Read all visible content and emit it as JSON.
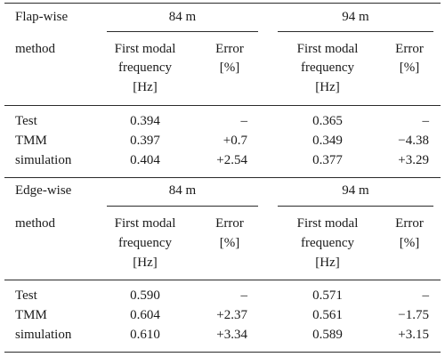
{
  "sections": [
    {
      "label": "Flap-wise",
      "groups": [
        "84 m",
        "94 m"
      ],
      "method_label": "method",
      "freq_header": [
        "First modal",
        "frequency",
        "[Hz]"
      ],
      "error_header": [
        "Error",
        "[%]"
      ],
      "rows": [
        {
          "method": "Test",
          "f84": "0.394",
          "e84": "–",
          "f94": "0.365",
          "e94": "–"
        },
        {
          "method": "TMM",
          "f84": "0.397",
          "e84": "+0.7",
          "f94": "0.349",
          "e94": "−4.38"
        },
        {
          "method": "simulation",
          "f84": "0.404",
          "e84": "+2.54",
          "f94": "0.377",
          "e94": "+3.29"
        }
      ]
    },
    {
      "label": "Edge-wise",
      "groups": [
        "84 m",
        "94 m"
      ],
      "method_label": "method",
      "freq_header": [
        "First modal",
        "frequency",
        "[Hz]"
      ],
      "error_header": [
        "Error",
        "[%]"
      ],
      "rows": [
        {
          "method": "Test",
          "f84": "0.590",
          "e84": "–",
          "f94": "0.571",
          "e94": "–"
        },
        {
          "method": "TMM",
          "f84": "0.604",
          "e84": "+2.37",
          "f94": "0.561",
          "e94": "−1.75"
        },
        {
          "method": "simulation",
          "f84": "0.610",
          "e84": "+3.34",
          "f94": "0.589",
          "e94": "+3.15"
        }
      ]
    }
  ]
}
